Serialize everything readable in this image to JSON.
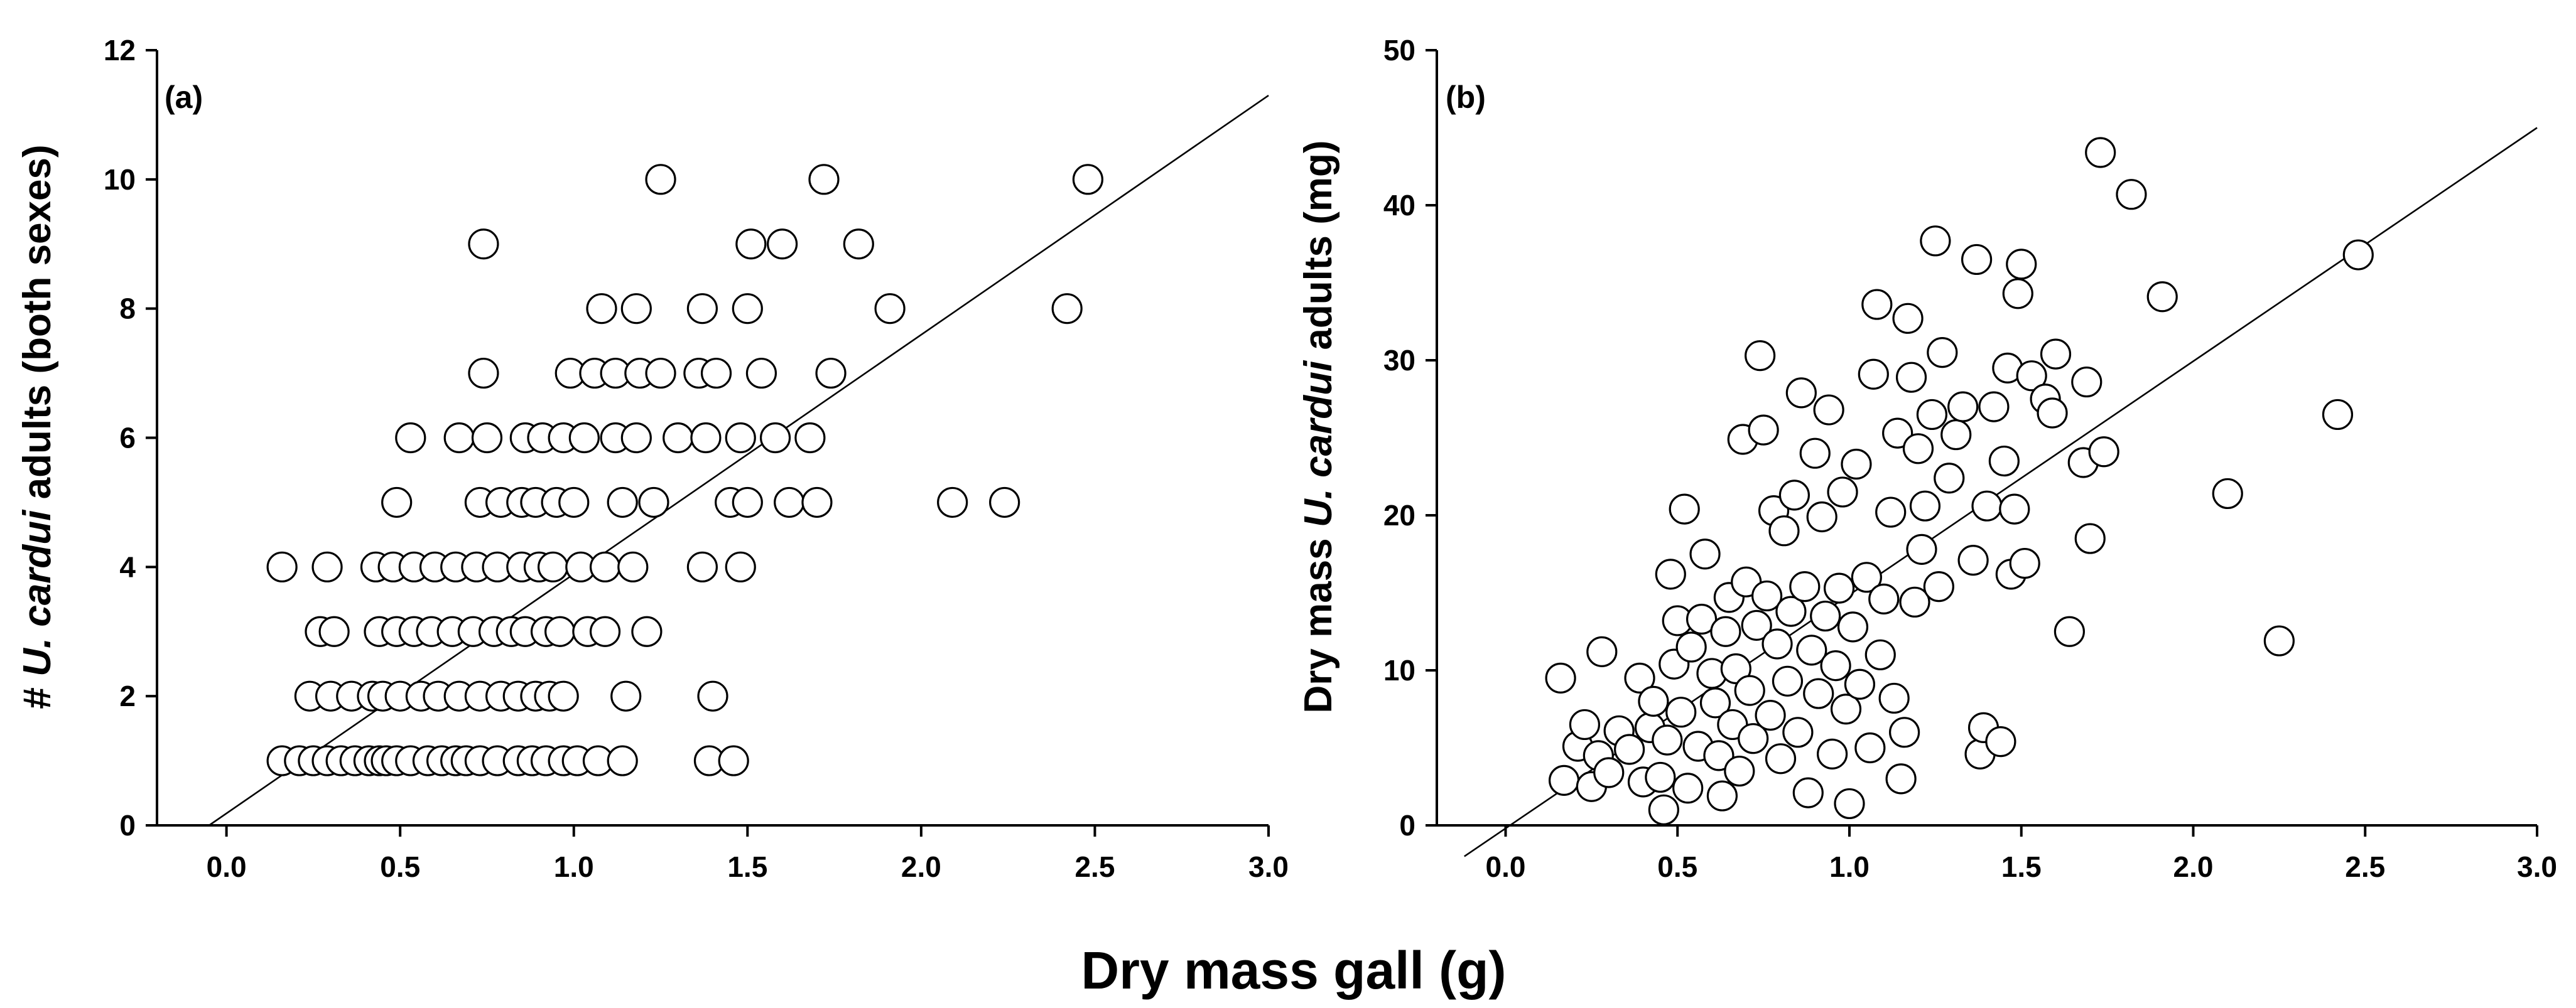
{
  "chart_data": [
    {
      "type": "scatter",
      "panel_label": "(a)",
      "xlabel": "Dry mass gall (g)",
      "ylabel": {
        "prefix": "# ",
        "italic": "U. cardui",
        "suffix": " adults (both sexes)"
      },
      "xlim": [
        -0.2,
        3.0
      ],
      "ylim": [
        0,
        12
      ],
      "xticks": [
        "0.0",
        "0.5",
        "1.0",
        "1.5",
        "2.0",
        "2.5",
        "3.0"
      ],
      "yticks": [
        "0",
        "2",
        "4",
        "6",
        "8",
        "10",
        "12"
      ],
      "fit_line": {
        "x": [
          -0.05,
          3.0
        ],
        "y": [
          0,
          11.3
        ]
      },
      "points": [
        [
          0.16,
          1
        ],
        [
          0.21,
          1
        ],
        [
          0.25,
          1
        ],
        [
          0.29,
          1
        ],
        [
          0.33,
          1
        ],
        [
          0.37,
          1
        ],
        [
          0.41,
          1
        ],
        [
          0.44,
          1
        ],
        [
          0.46,
          1
        ],
        [
          0.49,
          1
        ],
        [
          0.53,
          1
        ],
        [
          0.58,
          1
        ],
        [
          0.62,
          1
        ],
        [
          0.66,
          1
        ],
        [
          0.69,
          1
        ],
        [
          0.73,
          1
        ],
        [
          0.78,
          1
        ],
        [
          0.84,
          1
        ],
        [
          0.88,
          1
        ],
        [
          0.92,
          1
        ],
        [
          0.97,
          1
        ],
        [
          1.01,
          1
        ],
        [
          1.07,
          1
        ],
        [
          1.14,
          1
        ],
        [
          1.39,
          1
        ],
        [
          1.46,
          1
        ],
        [
          0.24,
          2
        ],
        [
          0.3,
          2
        ],
        [
          0.36,
          2
        ],
        [
          0.42,
          2
        ],
        [
          0.45,
          2
        ],
        [
          0.5,
          2
        ],
        [
          0.56,
          2
        ],
        [
          0.61,
          2
        ],
        [
          0.67,
          2
        ],
        [
          0.73,
          2
        ],
        [
          0.79,
          2
        ],
        [
          0.84,
          2
        ],
        [
          0.89,
          2
        ],
        [
          0.93,
          2
        ],
        [
          0.97,
          2
        ],
        [
          1.15,
          2
        ],
        [
          1.4,
          2
        ],
        [
          0.27,
          3
        ],
        [
          0.31,
          3
        ],
        [
          0.44,
          3
        ],
        [
          0.49,
          3
        ],
        [
          0.54,
          3
        ],
        [
          0.59,
          3
        ],
        [
          0.65,
          3
        ],
        [
          0.71,
          3
        ],
        [
          0.77,
          3
        ],
        [
          0.82,
          3
        ],
        [
          0.86,
          3
        ],
        [
          0.92,
          3
        ],
        [
          0.96,
          3
        ],
        [
          1.04,
          3
        ],
        [
          1.09,
          3
        ],
        [
          1.21,
          3
        ],
        [
          0.16,
          4
        ],
        [
          0.29,
          4
        ],
        [
          0.43,
          4
        ],
        [
          0.48,
          4
        ],
        [
          0.54,
          4
        ],
        [
          0.6,
          4
        ],
        [
          0.66,
          4
        ],
        [
          0.72,
          4
        ],
        [
          0.78,
          4
        ],
        [
          0.85,
          4
        ],
        [
          0.9,
          4
        ],
        [
          0.94,
          4
        ],
        [
          1.02,
          4
        ],
        [
          1.09,
          4
        ],
        [
          1.17,
          4
        ],
        [
          1.37,
          4
        ],
        [
          1.48,
          4
        ],
        [
          0.49,
          5
        ],
        [
          0.73,
          5
        ],
        [
          0.79,
          5
        ],
        [
          0.85,
          5
        ],
        [
          0.89,
          5
        ],
        [
          0.95,
          5
        ],
        [
          1.0,
          5
        ],
        [
          1.14,
          5
        ],
        [
          1.23,
          5
        ],
        [
          1.45,
          5
        ],
        [
          1.5,
          5
        ],
        [
          1.62,
          5
        ],
        [
          1.7,
          5
        ],
        [
          2.09,
          5
        ],
        [
          2.24,
          5
        ],
        [
          0.53,
          6
        ],
        [
          0.67,
          6
        ],
        [
          0.75,
          6
        ],
        [
          0.86,
          6
        ],
        [
          0.91,
          6
        ],
        [
          0.97,
          6
        ],
        [
          1.03,
          6
        ],
        [
          1.12,
          6
        ],
        [
          1.18,
          6
        ],
        [
          1.3,
          6
        ],
        [
          1.38,
          6
        ],
        [
          1.48,
          6
        ],
        [
          1.58,
          6
        ],
        [
          1.68,
          6
        ],
        [
          0.74,
          7
        ],
        [
          0.99,
          7
        ],
        [
          1.06,
          7
        ],
        [
          1.12,
          7
        ],
        [
          1.19,
          7
        ],
        [
          1.25,
          7
        ],
        [
          1.36,
          7
        ],
        [
          1.41,
          7
        ],
        [
          1.54,
          7
        ],
        [
          1.74,
          7
        ],
        [
          1.08,
          8
        ],
        [
          1.18,
          8
        ],
        [
          1.37,
          8
        ],
        [
          1.5,
          8
        ],
        [
          1.91,
          8
        ],
        [
          2.42,
          8
        ],
        [
          0.74,
          9
        ],
        [
          1.51,
          9
        ],
        [
          1.6,
          9
        ],
        [
          1.82,
          9
        ],
        [
          1.25,
          10
        ],
        [
          1.72,
          10
        ],
        [
          2.48,
          10
        ]
      ]
    },
    {
      "type": "scatter",
      "panel_label": "(b)",
      "xlabel": "Dry mass gall (g)",
      "ylabel": {
        "prefix": "Dry mass ",
        "italic": "U. cardui",
        "suffix": " adults (mg)"
      },
      "xlim": [
        -0.2,
        3.0
      ],
      "ylim": [
        0,
        50
      ],
      "xticks": [
        "0.0",
        "0.5",
        "1.0",
        "1.5",
        "2.0",
        "2.5",
        "3.0"
      ],
      "yticks": [
        "0",
        "10",
        "20",
        "30",
        "40",
        "50"
      ],
      "fit_line": {
        "x": [
          -0.12,
          3.0
        ],
        "y": [
          -2.0,
          45.0
        ]
      },
      "points": [
        [
          0.16,
          9.5
        ],
        [
          0.17,
          2.9
        ],
        [
          0.21,
          5.1
        ],
        [
          0.23,
          6.5
        ],
        [
          0.25,
          2.5
        ],
        [
          0.27,
          4.5
        ],
        [
          0.28,
          11.2
        ],
        [
          0.3,
          3.4
        ],
        [
          0.33,
          6.1
        ],
        [
          0.36,
          4.9
        ],
        [
          0.39,
          9.5
        ],
        [
          0.4,
          2.8
        ],
        [
          0.42,
          6.3
        ],
        [
          0.43,
          8.0
        ],
        [
          0.45,
          3.1
        ],
        [
          0.46,
          1.0
        ],
        [
          0.47,
          5.5
        ],
        [
          0.48,
          16.2
        ],
        [
          0.49,
          10.4
        ],
        [
          0.5,
          13.2
        ],
        [
          0.51,
          7.3
        ],
        [
          0.52,
          20.4
        ],
        [
          0.53,
          2.4
        ],
        [
          0.54,
          11.5
        ],
        [
          0.56,
          5.1
        ],
        [
          0.57,
          13.3
        ],
        [
          0.58,
          17.5
        ],
        [
          0.6,
          9.8
        ],
        [
          0.61,
          7.9
        ],
        [
          0.62,
          4.5
        ],
        [
          0.63,
          1.9
        ],
        [
          0.64,
          12.5
        ],
        [
          0.65,
          14.7
        ],
        [
          0.66,
          6.5
        ],
        [
          0.67,
          10.1
        ],
        [
          0.68,
          3.5
        ],
        [
          0.69,
          24.9
        ],
        [
          0.7,
          15.7
        ],
        [
          0.71,
          8.7
        ],
        [
          0.72,
          5.6
        ],
        [
          0.73,
          12.9
        ],
        [
          0.74,
          30.3
        ],
        [
          0.75,
          25.5
        ],
        [
          0.76,
          14.8
        ],
        [
          0.77,
          7.1
        ],
        [
          0.78,
          20.3
        ],
        [
          0.79,
          11.7
        ],
        [
          0.8,
          4.3
        ],
        [
          0.81,
          19.0
        ],
        [
          0.82,
          9.3
        ],
        [
          0.83,
          13.8
        ],
        [
          0.84,
          21.3
        ],
        [
          0.85,
          6.0
        ],
        [
          0.86,
          27.9
        ],
        [
          0.87,
          15.4
        ],
        [
          0.88,
          2.1
        ],
        [
          0.89,
          11.3
        ],
        [
          0.9,
          24.0
        ],
        [
          0.91,
          8.5
        ],
        [
          0.92,
          19.9
        ],
        [
          0.93,
          13.5
        ],
        [
          0.94,
          26.8
        ],
        [
          0.95,
          4.6
        ],
        [
          0.96,
          10.3
        ],
        [
          0.97,
          15.3
        ],
        [
          0.98,
          21.5
        ],
        [
          0.99,
          7.5
        ],
        [
          1.0,
          1.4
        ],
        [
          1.01,
          12.8
        ],
        [
          1.02,
          23.3
        ],
        [
          1.03,
          9.1
        ],
        [
          1.05,
          16.0
        ],
        [
          1.06,
          5.0
        ],
        [
          1.07,
          29.1
        ],
        [
          1.08,
          33.6
        ],
        [
          1.09,
          11.0
        ],
        [
          1.1,
          14.6
        ],
        [
          1.12,
          20.2
        ],
        [
          1.13,
          8.2
        ],
        [
          1.14,
          25.3
        ],
        [
          1.15,
          3.0
        ],
        [
          1.16,
          6.0
        ],
        [
          1.17,
          32.7
        ],
        [
          1.18,
          28.9
        ],
        [
          1.19,
          14.4
        ],
        [
          1.2,
          24.3
        ],
        [
          1.21,
          17.8
        ],
        [
          1.22,
          20.6
        ],
        [
          1.24,
          26.5
        ],
        [
          1.25,
          37.7
        ],
        [
          1.26,
          15.4
        ],
        [
          1.27,
          30.5
        ],
        [
          1.29,
          22.4
        ],
        [
          1.31,
          25.2
        ],
        [
          1.33,
          27.0
        ],
        [
          1.36,
          17.1
        ],
        [
          1.37,
          36.5
        ],
        [
          1.38,
          4.6
        ],
        [
          1.39,
          6.3
        ],
        [
          1.4,
          20.6
        ],
        [
          1.42,
          27.0
        ],
        [
          1.44,
          5.4
        ],
        [
          1.45,
          23.5
        ],
        [
          1.46,
          29.5
        ],
        [
          1.47,
          16.2
        ],
        [
          1.48,
          20.4
        ],
        [
          1.49,
          34.3
        ],
        [
          1.5,
          36.2
        ],
        [
          1.51,
          16.9
        ],
        [
          1.53,
          29.0
        ],
        [
          1.57,
          27.5
        ],
        [
          1.59,
          26.6
        ],
        [
          1.6,
          30.4
        ],
        [
          1.64,
          12.5
        ],
        [
          1.68,
          23.4
        ],
        [
          1.69,
          28.6
        ],
        [
          1.7,
          18.5
        ],
        [
          1.73,
          43.4
        ],
        [
          1.74,
          24.1
        ],
        [
          1.82,
          40.7
        ],
        [
          1.91,
          34.1
        ],
        [
          2.1,
          21.4
        ],
        [
          2.25,
          11.9
        ],
        [
          2.42,
          26.5
        ],
        [
          2.48,
          36.8
        ]
      ]
    }
  ]
}
